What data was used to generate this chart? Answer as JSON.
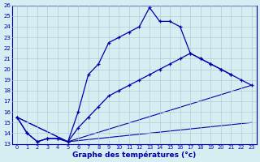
{
  "xlabel": "Graphe des températures (°c)",
  "background_color": "#d6eef1",
  "grid_color": "#b0ccd4",
  "line_color": "#0000aa",
  "x_min": 0,
  "x_max": 23,
  "y_min": 13,
  "y_max": 26,
  "curve1_x": [
    0,
    1,
    2,
    3,
    4,
    5,
    6,
    7,
    8,
    9,
    10,
    11,
    12,
    13,
    14,
    15,
    16,
    17,
    18,
    19,
    20,
    21
  ],
  "curve1_y": [
    15.5,
    14.0,
    13.2,
    13.5,
    13.5,
    13.2,
    16.0,
    19.5,
    20.5,
    22.5,
    23.0,
    23.5,
    24.0,
    25.8,
    24.5,
    24.5,
    24.0,
    21.5,
    21.0,
    20.5,
    20.0,
    19.5
  ],
  "curve2_x": [
    0,
    1,
    2,
    3,
    4,
    5,
    6,
    7,
    8,
    9,
    10,
    11,
    12,
    13,
    14,
    15,
    16,
    17,
    18,
    19,
    20,
    21,
    22,
    23
  ],
  "curve2_y": [
    15.5,
    14.0,
    13.2,
    13.5,
    13.5,
    13.2,
    14.5,
    15.5,
    16.5,
    17.5,
    18.0,
    18.5,
    19.0,
    19.5,
    20.0,
    20.5,
    21.0,
    21.5,
    21.0,
    20.5,
    20.0,
    19.5,
    19.0,
    18.5
  ],
  "line3_x": [
    0,
    5,
    23
  ],
  "line3_y": [
    15.5,
    13.2,
    18.5
  ],
  "line4_x": [
    0,
    5,
    23
  ],
  "line4_y": [
    15.5,
    13.2,
    15.0
  ]
}
